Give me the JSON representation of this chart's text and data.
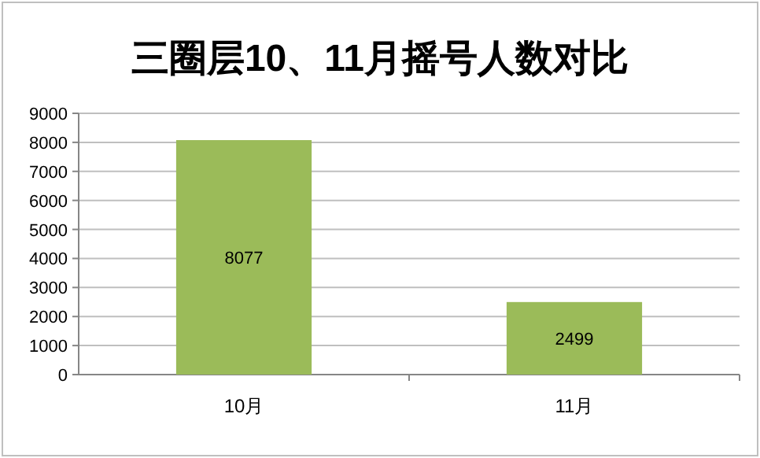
{
  "chart_data": {
    "type": "bar",
    "title": "三圈层10、11月摇号人数对比",
    "categories": [
      "10月",
      "11月"
    ],
    "values": [
      8077,
      2499
    ],
    "color": "#9bbb59",
    "ylim": [
      0,
      9000
    ],
    "yticks": [
      0,
      1000,
      2000,
      3000,
      4000,
      5000,
      6000,
      7000,
      8000,
      9000
    ],
    "grid": "y",
    "data_labels": true
  }
}
